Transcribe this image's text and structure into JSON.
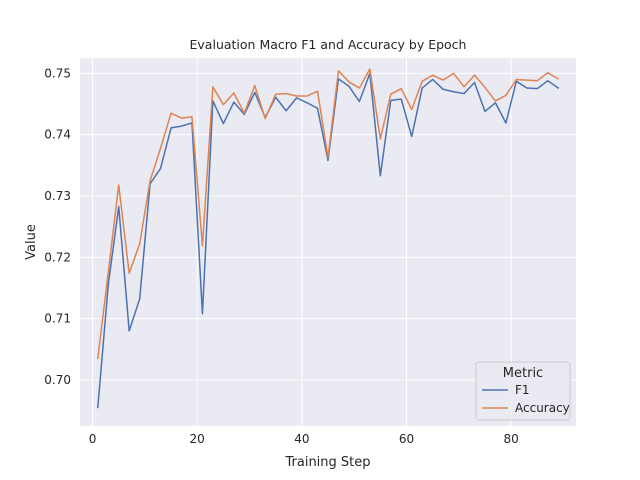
{
  "chart_data": {
    "type": "line",
    "title": "Evaluation Macro F1 and Accuracy by Epoch",
    "xlabel": "Training Step",
    "ylabel": "Value",
    "xlim": [
      -2.4,
      92.4
    ],
    "ylim": [
      0.6925,
      0.7525
    ],
    "xticks": [
      0,
      20,
      40,
      60,
      80
    ],
    "yticks": [
      0.7,
      0.71,
      0.72,
      0.73,
      0.74,
      0.75
    ],
    "ytick_labels": [
      "0.70",
      "0.71",
      "0.72",
      "0.73",
      "0.74",
      "0.75"
    ],
    "grid": true,
    "legend": {
      "title": "Metric",
      "position": "bottom-right"
    },
    "x": [
      1,
      3,
      5,
      7,
      9,
      11,
      13,
      15,
      17,
      19,
      21,
      23,
      25,
      27,
      29,
      31,
      33,
      35,
      37,
      39,
      41,
      43,
      45,
      47,
      49,
      51,
      53,
      55,
      57,
      59,
      61,
      63,
      65,
      67,
      69,
      71,
      73,
      75,
      77,
      79,
      81,
      83,
      85,
      87,
      89
    ],
    "series": [
      {
        "name": "F1",
        "color": "#4c72b0",
        "values": [
          0.6955,
          0.7155,
          0.7283,
          0.708,
          0.7132,
          0.732,
          0.7345,
          0.7411,
          0.7414,
          0.7419,
          0.7108,
          0.7455,
          0.7418,
          0.7453,
          0.7433,
          0.7469,
          0.7428,
          0.7461,
          0.7439,
          0.746,
          0.7452,
          0.7443,
          0.7358,
          0.7491,
          0.7479,
          0.7454,
          0.75,
          0.7333,
          0.7456,
          0.7458,
          0.7397,
          0.7476,
          0.749,
          0.7474,
          0.747,
          0.7467,
          0.7485,
          0.7438,
          0.7452,
          0.7419,
          0.7487,
          0.7476,
          0.7475,
          0.7488,
          0.7476
        ]
      },
      {
        "name": "Accuracy",
        "color": "#dd8452",
        "values": [
          0.7035,
          0.7175,
          0.7318,
          0.7174,
          0.7222,
          0.7325,
          0.7378,
          0.7435,
          0.7427,
          0.7429,
          0.7219,
          0.7478,
          0.7449,
          0.7468,
          0.7435,
          0.748,
          0.7426,
          0.7466,
          0.7467,
          0.7463,
          0.7463,
          0.7471,
          0.7363,
          0.7504,
          0.7486,
          0.7476,
          0.7507,
          0.7393,
          0.7466,
          0.7475,
          0.7441,
          0.7487,
          0.7497,
          0.7489,
          0.75,
          0.7478,
          0.7497,
          0.7477,
          0.7455,
          0.7464,
          0.749,
          0.7489,
          0.7488,
          0.7501,
          0.7491
        ]
      }
    ]
  }
}
